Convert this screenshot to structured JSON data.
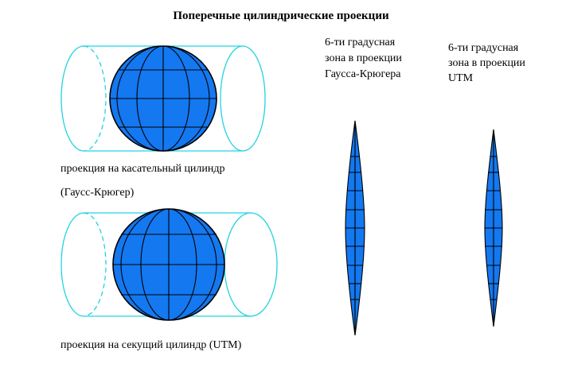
{
  "title": "Поперечные цилиндрические проекции",
  "top_caption_1": "проекция на касательный цилиндр",
  "top_caption_2": "(Гаусс-Крюгер)",
  "bottom_caption": "проекция на секущий цилиндр (UTM)",
  "zone_gk_label": [
    "6-ти градусная",
    "зона в проекции",
    "Гаусса-Крюгера"
  ],
  "zone_utm_label": [
    "6-ти градусная",
    "зона в проекции",
    "UTM"
  ],
  "colors": {
    "globe": "#1478f0",
    "cylinder": "#22d3e0",
    "outline": "#000000"
  }
}
